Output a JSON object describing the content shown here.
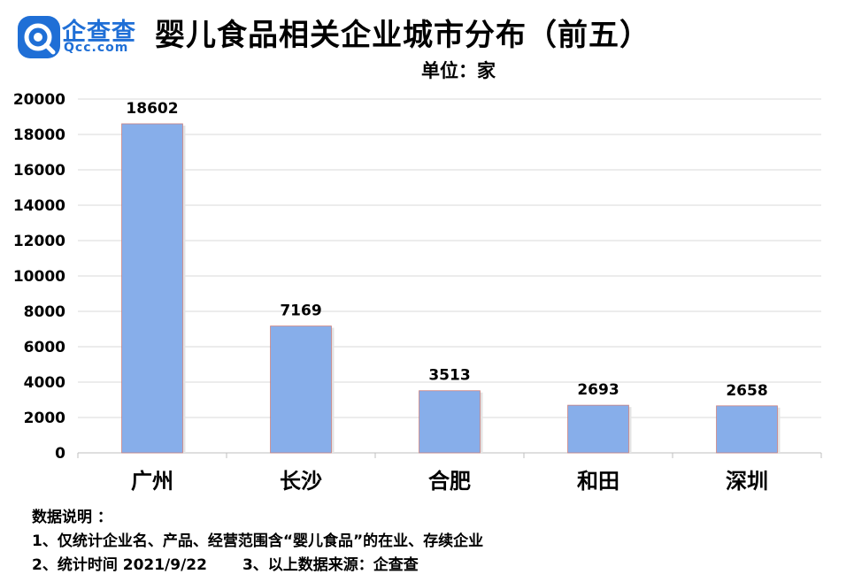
{
  "brand": {
    "name": "企查查",
    "sub": "Qcc.com"
  },
  "title": "婴儿食品相关企业城市分布（前五）",
  "unit": "单位：家",
  "chart_data": {
    "type": "bar",
    "categories": [
      "广州",
      "长沙",
      "合肥",
      "和田",
      "深圳"
    ],
    "values": [
      18602,
      7169,
      3513,
      2693,
      2658
    ],
    "ylim": [
      0,
      20000
    ],
    "yticks": [
      0,
      2000,
      4000,
      6000,
      8000,
      10000,
      12000,
      14000,
      16000,
      18000,
      20000
    ],
    "grid": true,
    "bar_color": "#87aeea"
  },
  "notes": {
    "heading": "数据说明 ：",
    "line1": "1、仅统计企业名、产品、经营范围含“婴儿食品”的在业、存续企业",
    "line2a": "2、统计时间 2021/9/22",
    "line2b": "3、以上数据来源：企查查"
  }
}
